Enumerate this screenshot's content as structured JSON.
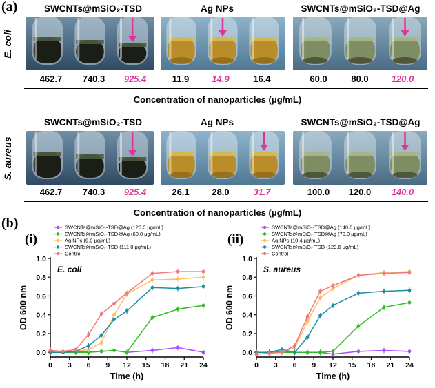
{
  "figure": {
    "panel_a_label": "(a)",
    "panel_b_label": "(b)",
    "axis_note": "Concentration of nanoparticles (μg/mL)"
  },
  "rows": [
    {
      "bacterium": "E. coli",
      "groups": [
        {
          "title": "SWCNTs@mSiO₂-TSD",
          "tube_color": "dark",
          "values": [
            "462.7",
            "740.3",
            "925.4"
          ],
          "highlight_index": 2
        },
        {
          "title": "Ag NPs",
          "tube_color": "amber",
          "values": [
            "11.9",
            "14.9",
            "16.4"
          ],
          "highlight_index": 1
        },
        {
          "title": "SWCNTs@mSiO₂-TSD@Ag",
          "tube_color": "pale",
          "values": [
            "60.0",
            "80.0",
            "120.0"
          ],
          "highlight_index": 2
        }
      ]
    },
    {
      "bacterium": "S. aureus",
      "groups": [
        {
          "title": "SWCNTs@mSiO₂-TSD",
          "tube_color": "dark",
          "values": [
            "462.7",
            "740.3",
            "925.4"
          ],
          "highlight_index": 2
        },
        {
          "title": "Ag NPs",
          "tube_color": "amber",
          "values": [
            "26.1",
            "28.0",
            "31.7"
          ],
          "highlight_index": 2
        },
        {
          "title": "SWCNTs@mSiO₂-TSD@Ag",
          "tube_color": "pale",
          "values": [
            "100.0",
            "120.0",
            "140.0"
          ],
          "highlight_index": 2
        }
      ]
    }
  ],
  "colors": {
    "highlight": "#e0339a",
    "purple": "#a64dff",
    "green": "#33bb22",
    "orange": "#ffbb66",
    "teal": "#1a8fa0",
    "red": "#f07878"
  },
  "chart_data": [
    {
      "type": "line",
      "panel": "(i)",
      "title": "E. coli",
      "xlabel": "Time (h)",
      "ylabel": "OD 600 nm",
      "xlim": [
        0,
        24
      ],
      "ylim": [
        -0.05,
        1.0
      ],
      "xticks": [
        0,
        3,
        6,
        9,
        12,
        15,
        18,
        21,
        24
      ],
      "yticks": [
        0.0,
        0.2,
        0.4,
        0.6,
        0.8,
        1.0
      ],
      "series": [
        {
          "name": "SWCNTs@mSiO₂-TSD@Ag (120.0 μg/mL)",
          "color": "#a64dff",
          "x": [
            0,
            2,
            4,
            6,
            8,
            10,
            12,
            16,
            20,
            24
          ],
          "y": [
            0.01,
            0.0,
            0.01,
            0.01,
            0.01,
            0.02,
            0.0,
            0.02,
            0.05,
            0.0
          ]
        },
        {
          "name": "SWCNTs@mSiO₂-TSD@Ag (60.0 μg/mL)",
          "color": "#33bb22",
          "x": [
            0,
            2,
            4,
            6,
            8,
            10,
            12,
            16,
            20,
            24
          ],
          "y": [
            0.0,
            0.0,
            0.0,
            0.0,
            0.01,
            0.02,
            0.0,
            0.37,
            0.46,
            0.5
          ]
        },
        {
          "name": "Ag NPs (9.0 μg/mL)",
          "color": "#ffbb66",
          "x": [
            0,
            2,
            4,
            6,
            8,
            10,
            12,
            16,
            20,
            24
          ],
          "y": [
            0.0,
            0.01,
            0.01,
            0.03,
            0.1,
            0.4,
            0.62,
            0.77,
            0.78,
            0.8
          ]
        },
        {
          "name": "SWCNTs@mSiO₂-TSD (111.0 μg/mL)",
          "color": "#1a8fa0",
          "x": [
            0,
            2,
            4,
            6,
            8,
            10,
            12,
            16,
            20,
            24
          ],
          "y": [
            0.0,
            0.0,
            0.01,
            0.07,
            0.18,
            0.35,
            0.44,
            0.69,
            0.68,
            0.7
          ]
        },
        {
          "name": "Control",
          "color": "#f07878",
          "x": [
            0,
            2,
            4,
            6,
            8,
            10,
            12,
            16,
            20,
            24
          ],
          "y": [
            0.02,
            0.01,
            0.03,
            0.19,
            0.41,
            0.52,
            0.63,
            0.84,
            0.86,
            0.86
          ]
        }
      ]
    },
    {
      "type": "line",
      "panel": "(ii)",
      "title": "S. aureus",
      "xlabel": "Time (h)",
      "ylabel": "OD 600 nm",
      "xlim": [
        0,
        24
      ],
      "ylim": [
        -0.05,
        1.0
      ],
      "xticks": [
        0,
        3,
        6,
        9,
        12,
        15,
        18,
        21,
        24
      ],
      "yticks": [
        0.0,
        0.2,
        0.4,
        0.6,
        0.8,
        1.0
      ],
      "series": [
        {
          "name": "SWCNTs@mSiO₂-TSD@Ag (140.0 μg/mL)",
          "color": "#a64dff",
          "x": [
            0,
            2,
            4,
            6,
            8,
            10,
            12,
            16,
            20,
            24
          ],
          "y": [
            0.0,
            0.0,
            0.01,
            0.0,
            0.0,
            0.0,
            -0.02,
            0.01,
            0.02,
            0.01
          ]
        },
        {
          "name": "SWCNTs@mSiO₂-TSD@Ag (70.0 μg/mL)",
          "color": "#33bb22",
          "x": [
            0,
            2,
            4,
            6,
            8,
            10,
            12,
            16,
            20,
            24
          ],
          "y": [
            0.0,
            0.0,
            0.0,
            0.0,
            0.0,
            0.0,
            0.01,
            0.28,
            0.48,
            0.53
          ]
        },
        {
          "name": "Ag NPs (10.4 μg/mL)",
          "color": "#ffbb66",
          "x": [
            0,
            2,
            4,
            6,
            8,
            10,
            12,
            16,
            20,
            24
          ],
          "y": [
            -0.02,
            -0.01,
            0.0,
            0.05,
            0.33,
            0.58,
            0.68,
            0.82,
            0.85,
            0.86
          ]
        },
        {
          "name": "SWCNTs@mSiO₂-TSD (129.6 μg/mL)",
          "color": "#1a8fa0",
          "x": [
            0,
            2,
            4,
            6,
            8,
            10,
            12,
            16,
            20,
            24
          ],
          "y": [
            0.0,
            0.0,
            0.03,
            0.0,
            0.16,
            0.39,
            0.5,
            0.63,
            0.65,
            0.66
          ]
        },
        {
          "name": "Control",
          "color": "#f07878",
          "x": [
            0,
            2,
            4,
            6,
            8,
            10,
            12,
            16,
            20,
            24
          ],
          "y": [
            -0.02,
            -0.01,
            0.0,
            0.07,
            0.38,
            0.65,
            0.71,
            0.82,
            0.84,
            0.85
          ]
        }
      ]
    }
  ]
}
